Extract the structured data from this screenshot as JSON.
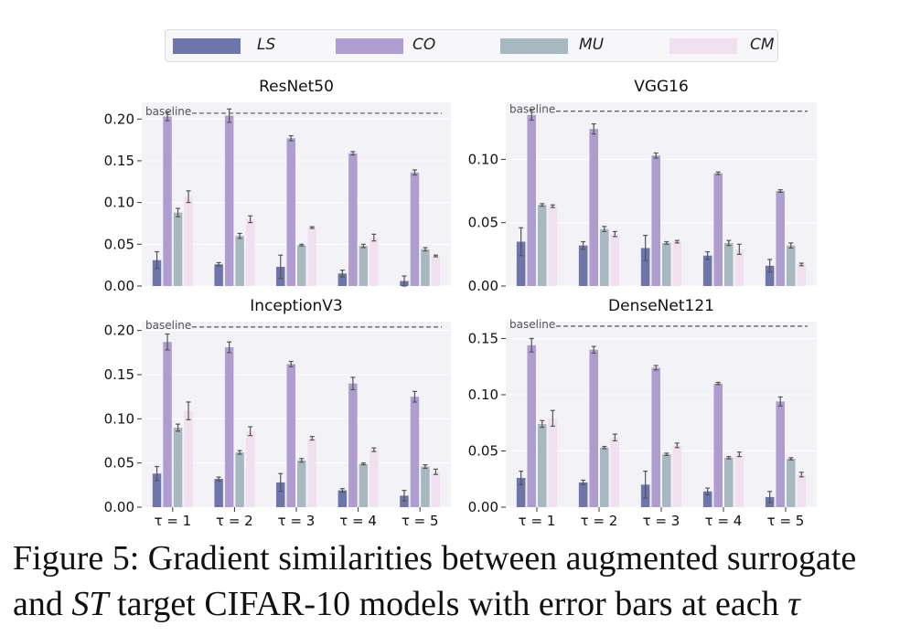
{
  "legend": {
    "items": [
      {
        "label": "LS",
        "color": "#6e75ab"
      },
      {
        "label": "CO",
        "color": "#b09dd0"
      },
      {
        "label": "MU",
        "color": "#a8b8c0"
      },
      {
        "label": "CM",
        "color": "#f1e0ef"
      }
    ]
  },
  "caption": {
    "line1": "Figure 5: Gradient similarities between augmented surrogate",
    "line2_a": "and ",
    "line2_st": "ST",
    "line2_b": " target CIFAR-10 models with error bars at each ",
    "line2_tau": "τ"
  },
  "chart_data": [
    {
      "type": "bar",
      "title": "ResNet50",
      "categories": [
        "τ = 1",
        "τ = 2",
        "τ = 3",
        "τ = 4",
        "τ = 5"
      ],
      "ylim": [
        0,
        0.22
      ],
      "yticks": [
        "0.00",
        "0.05",
        "0.10",
        "0.15",
        "0.20"
      ],
      "baseline": {
        "label": "baseline",
        "value": 0.207
      },
      "series": [
        {
          "name": "LS",
          "values": [
            0.031,
            0.026,
            0.023,
            0.015,
            0.006
          ],
          "errors": [
            0.01,
            0.002,
            0.014,
            0.004,
            0.006
          ]
        },
        {
          "name": "CO",
          "values": [
            0.203,
            0.204,
            0.177,
            0.159,
            0.136
          ],
          "errors": [
            0.005,
            0.008,
            0.003,
            0.002,
            0.003
          ]
        },
        {
          "name": "MU",
          "values": [
            0.088,
            0.06,
            0.049,
            0.048,
            0.044
          ],
          "errors": [
            0.005,
            0.003,
            0.001,
            0.002,
            0.002
          ]
        },
        {
          "name": "CM",
          "values": [
            0.107,
            0.08,
            0.07,
            0.058,
            0.036
          ],
          "errors": [
            0.007,
            0.004,
            0.001,
            0.004,
            0.001
          ]
        }
      ]
    },
    {
      "type": "bar",
      "title": "VGG16",
      "categories": [
        "τ = 1",
        "τ = 2",
        "τ = 3",
        "τ = 4",
        "τ = 5"
      ],
      "ylim": [
        0,
        0.145
      ],
      "yticks": [
        "0.00",
        "0.05",
        "0.10"
      ],
      "baseline": {
        "label": "baseline",
        "value": 0.138
      },
      "series": [
        {
          "name": "LS",
          "values": [
            0.035,
            0.032,
            0.03,
            0.024,
            0.016
          ],
          "errors": [
            0.011,
            0.003,
            0.01,
            0.003,
            0.005
          ]
        },
        {
          "name": "CO",
          "values": [
            0.135,
            0.124,
            0.103,
            0.089,
            0.075
          ],
          "errors": [
            0.004,
            0.004,
            0.002,
            0.001,
            0.001
          ]
        },
        {
          "name": "MU",
          "values": [
            0.064,
            0.045,
            0.034,
            0.034,
            0.032
          ],
          "errors": [
            0.001,
            0.002,
            0.001,
            0.002,
            0.002
          ]
        },
        {
          "name": "CM",
          "values": [
            0.063,
            0.041,
            0.035,
            0.029,
            0.017
          ],
          "errors": [
            0.001,
            0.002,
            0.001,
            0.004,
            0.001
          ]
        }
      ]
    },
    {
      "type": "bar",
      "title": "InceptionV3",
      "categories": [
        "τ = 1",
        "τ = 2",
        "τ = 3",
        "τ = 4",
        "τ = 5"
      ],
      "ylim": [
        0,
        0.21
      ],
      "yticks": [
        "0.00",
        "0.05",
        "0.10",
        "0.15",
        "0.20"
      ],
      "baseline": {
        "label": "baseline",
        "value": 0.204
      },
      "series": [
        {
          "name": "LS",
          "values": [
            0.038,
            0.032,
            0.028,
            0.019,
            0.013
          ],
          "errors": [
            0.008,
            0.002,
            0.01,
            0.002,
            0.006
          ]
        },
        {
          "name": "CO",
          "values": [
            0.187,
            0.181,
            0.162,
            0.14,
            0.125
          ],
          "errors": [
            0.009,
            0.006,
            0.003,
            0.007,
            0.006
          ]
        },
        {
          "name": "MU",
          "values": [
            0.09,
            0.062,
            0.053,
            0.049,
            0.046
          ],
          "errors": [
            0.004,
            0.002,
            0.002,
            0.001,
            0.002
          ]
        },
        {
          "name": "CM",
          "values": [
            0.109,
            0.086,
            0.078,
            0.065,
            0.04
          ],
          "errors": [
            0.01,
            0.005,
            0.002,
            0.002,
            0.003
          ]
        }
      ]
    },
    {
      "type": "bar",
      "title": "DenseNet121",
      "categories": [
        "τ = 1",
        "τ = 2",
        "τ = 3",
        "τ = 4",
        "τ = 5"
      ],
      "ylim": [
        0,
        0.165
      ],
      "yticks": [
        "0.00",
        "0.05",
        "0.10",
        "0.15"
      ],
      "baseline": {
        "label": "baseline",
        "value": 0.161
      },
      "series": [
        {
          "name": "LS",
          "values": [
            0.026,
            0.022,
            0.02,
            0.014,
            0.009
          ],
          "errors": [
            0.006,
            0.002,
            0.012,
            0.003,
            0.005
          ]
        },
        {
          "name": "CO",
          "values": [
            0.144,
            0.14,
            0.124,
            0.11,
            0.094
          ],
          "errors": [
            0.006,
            0.003,
            0.002,
            0.001,
            0.004
          ]
        },
        {
          "name": "MU",
          "values": [
            0.074,
            0.053,
            0.047,
            0.044,
            0.043
          ],
          "errors": [
            0.003,
            0.001,
            0.001,
            0.001,
            0.001
          ]
        },
        {
          "name": "CM",
          "values": [
            0.079,
            0.062,
            0.055,
            0.047,
            0.029
          ],
          "errors": [
            0.007,
            0.003,
            0.002,
            0.002,
            0.002
          ]
        }
      ]
    }
  ]
}
